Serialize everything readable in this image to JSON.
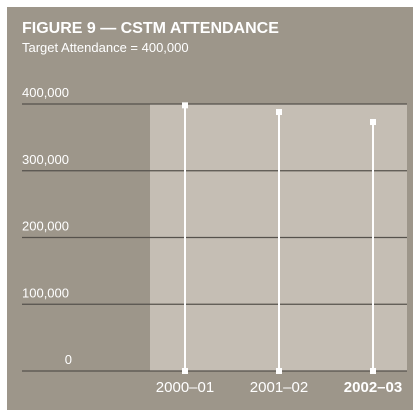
{
  "chart_data": {
    "type": "bar",
    "title": "FIGURE 9 — CSTM ATTENDANCE",
    "subtitle": "Target Attendance = 400,000",
    "categories": [
      "2000–01",
      "2001–02",
      "2002–03"
    ],
    "values": [
      398000,
      388000,
      373000
    ],
    "color": "#ffffff",
    "highlight_index": 2,
    "ylim": [
      0,
      400000
    ],
    "yticks": [
      0,
      {
        "value": 100000,
        "label": "100,000"
      },
      {
        "value": 200000,
        "label": "200,000"
      },
      {
        "value": 300000,
        "label": "300,000"
      },
      {
        "value": 400000,
        "label": "400,000"
      }
    ],
    "grid": true
  }
}
